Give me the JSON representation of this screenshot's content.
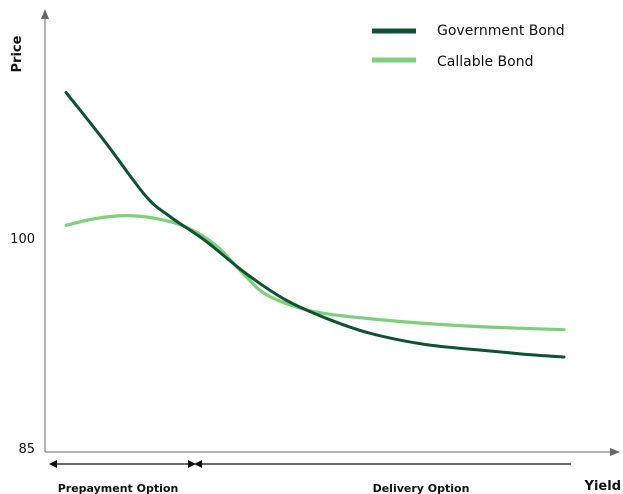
{
  "chart_data": {
    "type": "line",
    "xlabel": "Yield",
    "ylabel": "Price",
    "yticks": [
      {
        "value": 100,
        "label": "100"
      },
      {
        "value": 85,
        "label": "85"
      }
    ],
    "series": [
      {
        "name": "Government Bond",
        "color": "#0d5231",
        "points": [
          [
            0.0,
            110.4
          ],
          [
            0.08,
            106.8
          ],
          [
            0.16,
            103.0
          ],
          [
            0.21,
            101.5
          ],
          [
            0.28,
            99.8
          ],
          [
            0.36,
            97.5
          ],
          [
            0.44,
            95.6
          ],
          [
            0.52,
            94.3
          ],
          [
            0.61,
            93.2
          ],
          [
            0.72,
            92.4
          ],
          [
            0.83,
            92.0
          ],
          [
            0.92,
            91.7
          ],
          [
            1.0,
            91.5
          ]
        ]
      },
      {
        "name": "Callable Bond",
        "color": "#7ecf7d",
        "points": [
          [
            0.0,
            100.9
          ],
          [
            0.06,
            101.4
          ],
          [
            0.12,
            101.6
          ],
          [
            0.18,
            101.4
          ],
          [
            0.24,
            100.8
          ],
          [
            0.3,
            99.5
          ],
          [
            0.36,
            97.3
          ],
          [
            0.4,
            96.0
          ],
          [
            0.46,
            95.1
          ],
          [
            0.52,
            94.6
          ],
          [
            0.62,
            94.2
          ],
          [
            0.72,
            93.9
          ],
          [
            0.84,
            93.65
          ],
          [
            1.0,
            93.45
          ]
        ]
      }
    ],
    "annotations": [
      {
        "text": "Prepayment Option",
        "range": [
          0.0,
          0.255
        ]
      },
      {
        "text": "Delivery Option",
        "range": [
          0.255,
          1.0
        ]
      }
    ],
    "colors": {
      "axis": "#666666",
      "text": "#111111"
    }
  }
}
